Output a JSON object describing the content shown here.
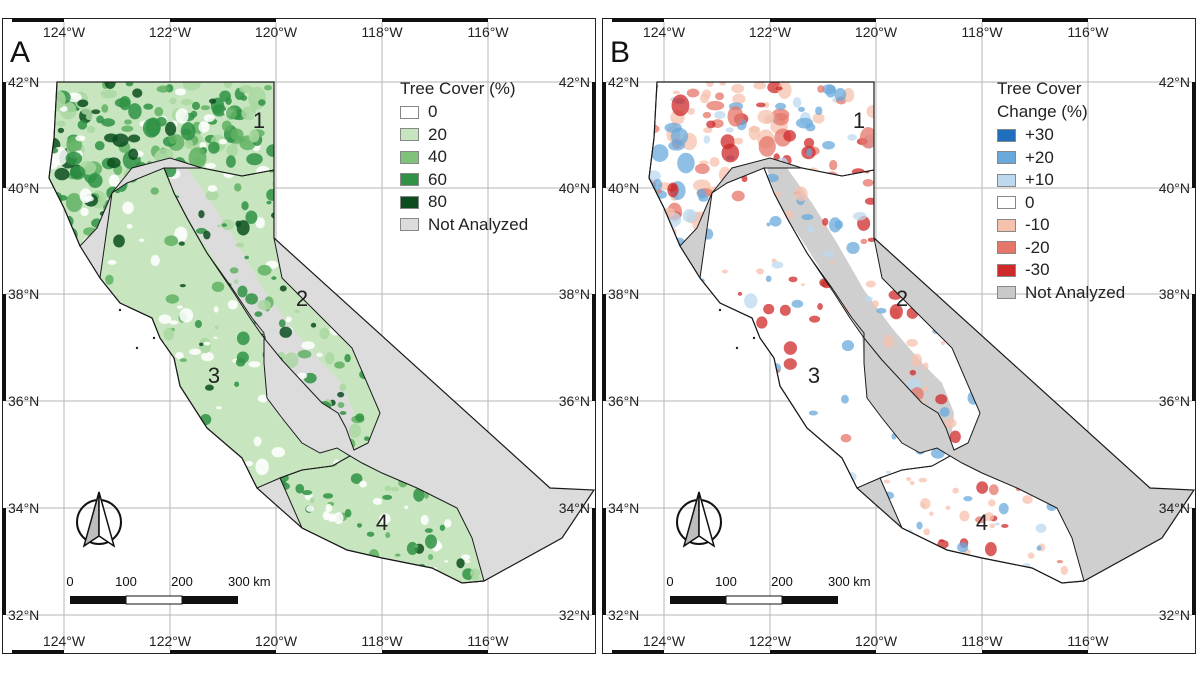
{
  "panels": [
    {
      "letter": "A",
      "legend_title_lines": [
        "Tree Cover (%)"
      ],
      "legend_items": [
        {
          "label": "0",
          "color": "#ffffff"
        },
        {
          "label": "20",
          "color": "#c7e6bf"
        },
        {
          "label": "40",
          "color": "#7fc27a"
        },
        {
          "label": "60",
          "color": "#2f9244"
        },
        {
          "label": "80",
          "color": "#0b4d1f"
        },
        {
          "label": "Not Analyzed",
          "color": "#dcdcdc"
        }
      ]
    },
    {
      "letter": "B",
      "legend_title_lines": [
        "Tree Cover",
        "Change (%)"
      ],
      "legend_items": [
        {
          "label": "+30",
          "color": "#1f6fbd"
        },
        {
          "label": "+20",
          "color": "#6aa9dc"
        },
        {
          "label": "+10",
          "color": "#bcd9f0"
        },
        {
          "label": "0",
          "color": "#ffffff"
        },
        {
          "label": "-10",
          "color": "#f6c1ad"
        },
        {
          "label": "-20",
          "color": "#e5766a"
        },
        {
          "label": "-30",
          "color": "#cf2a2a"
        },
        {
          "label": "Not Analyzed",
          "color": "#c9c9c9"
        }
      ]
    }
  ],
  "lon_labels": [
    "124°W",
    "122°W",
    "120°W",
    "118°W",
    "116°W"
  ],
  "lat_labels": [
    "42°N",
    "40°N",
    "38°N",
    "36°N",
    "34°N",
    "32°N"
  ],
  "region_numbers": [
    "1",
    "2",
    "3",
    "4"
  ],
  "scale_labels": [
    "0",
    "100",
    "200",
    "300 km"
  ],
  "colors": {
    "not_analyzed": "#dcdcdc",
    "graticule": "#b5b5b5",
    "boundary": "#1a1a1a",
    "green_dark": "#0b4d1f",
    "green_mid": "#2f9244",
    "green_light": "#c7e6bf",
    "gain_blue": "#6aa9dc",
    "loss_red": "#cf2a2a"
  },
  "icons": {
    "north_arrow": "north-arrow-icon"
  }
}
